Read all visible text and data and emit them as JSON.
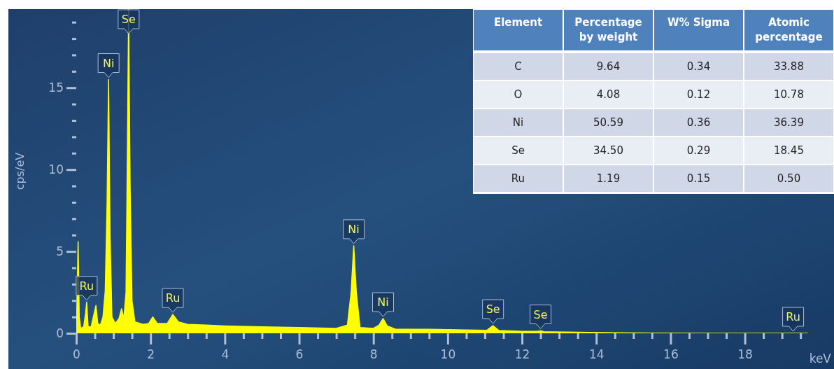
{
  "chart_data": [
    {
      "type": "area",
      "xlabel": "keV",
      "ylabel": "cps/eV",
      "xlim": [
        0,
        20.4
      ],
      "ylim": [
        0,
        19.8
      ],
      "xticks": [
        0,
        {
          "value": 0.5,
          "label": null
        },
        {
          "value": 1,
          "label": null
        },
        {
          "value": 1.5,
          "label": null
        },
        2,
        {
          "value": 2.5,
          "label": null
        },
        {
          "value": 3,
          "label": null
        },
        {
          "value": 3.5,
          "label": null
        },
        4,
        {
          "value": 4.5,
          "label": null
        },
        {
          "value": 5,
          "label": null
        },
        {
          "value": 5.5,
          "label": null
        },
        6,
        {
          "value": 6.5,
          "label": null
        },
        {
          "value": 7,
          "label": null
        },
        {
          "value": 7.5,
          "label": null
        },
        8,
        {
          "value": 8.5,
          "label": null
        },
        {
          "value": 9,
          "label": null
        },
        {
          "value": 9.5,
          "label": null
        },
        10,
        {
          "value": 10.5,
          "label": null
        },
        {
          "value": 11,
          "label": null
        },
        {
          "value": 11.5,
          "label": null
        },
        12,
        {
          "value": 12.5,
          "label": null
        },
        {
          "value": 13,
          "label": null
        },
        {
          "value": 13.5,
          "label": null
        },
        14,
        {
          "value": 14.5,
          "label": null
        },
        {
          "value": 15,
          "label": null
        },
        {
          "value": 15.5,
          "label": null
        },
        16,
        {
          "value": 16.5,
          "label": null
        },
        {
          "value": 17,
          "label": null
        },
        {
          "value": 17.5,
          "label": null
        },
        18,
        {
          "value": 18.5,
          "label": null
        },
        {
          "value": 19,
          "label": null
        },
        {
          "value": 19.5,
          "label": null
        }
      ],
      "yticks": [
        0,
        {
          "value": 1,
          "label": null
        },
        {
          "value": 2,
          "label": null
        },
        {
          "value": 3,
          "label": null
        },
        {
          "value": 4,
          "label": null
        },
        5,
        {
          "value": 6,
          "label": null
        },
        {
          "value": 7,
          "label": null
        },
        {
          "value": 8,
          "label": null
        },
        {
          "value": 9,
          "label": null
        },
        10,
        {
          "value": 11,
          "label": null
        },
        {
          "value": 12,
          "label": null
        },
        {
          "value": 13,
          "label": null
        },
        {
          "value": 14,
          "label": null
        },
        15,
        {
          "value": 16,
          "label": null
        },
        {
          "value": 17,
          "label": null
        },
        {
          "value": 18,
          "label": null
        },
        {
          "value": 19,
          "label": null
        }
      ],
      "series": [
        {
          "color": "#ffff00",
          "x": [
            0,
            0.03,
            0.05,
            0.08,
            0.12,
            0.2,
            0.25,
            0.28,
            0.32,
            0.4,
            0.48,
            0.53,
            0.58,
            0.65,
            0.72,
            0.78,
            0.83,
            0.87,
            0.91,
            0.96,
            1.05,
            1.15,
            1.22,
            1.28,
            1.34,
            1.38,
            1.41,
            1.45,
            1.5,
            1.58,
            1.8,
            1.95,
            2.06,
            2.18,
            2.45,
            2.6,
            2.75,
            3.0,
            3.5,
            4,
            5,
            6,
            7,
            7.3,
            7.4,
            7.47,
            7.54,
            7.64,
            8.0,
            8.15,
            8.26,
            8.37,
            8.6,
            9.5,
            10.5,
            11.05,
            11.22,
            11.38,
            12.0,
            12.4,
            12.5,
            12.6,
            13.5,
            14.5,
            15.5,
            17,
            19.7
          ],
          "values": [
            0,
            3,
            5.6,
            1.0,
            0.3,
            0.4,
            1.2,
            1.9,
            0.4,
            0.4,
            1.2,
            1.7,
            0.6,
            0.5,
            1.0,
            2.6,
            8,
            15.5,
            6,
            1.0,
            0.6,
            0.9,
            1.5,
            0.9,
            2.5,
            12,
            19.8,
            9,
            2,
            0.7,
            0.55,
            0.6,
            1.0,
            0.6,
            0.6,
            1.15,
            0.7,
            0.55,
            0.5,
            0.45,
            0.4,
            0.35,
            0.3,
            0.5,
            2.5,
            5.35,
            2.5,
            0.35,
            0.3,
            0.5,
            0.9,
            0.45,
            0.25,
            0.25,
            0.2,
            0.18,
            0.47,
            0.17,
            0.12,
            0.12,
            0.15,
            0.1,
            0.06,
            0.03,
            0.01,
            0,
            0
          ]
        }
      ],
      "annotations": [
        {
          "text": "Ru",
          "x": 0.28,
          "y": 1.9
        },
        {
          "text": "Ni",
          "x": 0.87,
          "y": 15.5
        },
        {
          "text": "Se",
          "x": 1.41,
          "y": 19.8
        },
        {
          "text": "Ru",
          "x": 2.6,
          "y": 1.15
        },
        {
          "text": "Ni",
          "x": 7.47,
          "y": 5.35
        },
        {
          "text": "Ni",
          "x": 8.26,
          "y": 0.9
        },
        {
          "text": "Se",
          "x": 11.22,
          "y": 0.47
        },
        {
          "text": "Se",
          "x": 12.5,
          "y": 0.15
        },
        {
          "text": "Ru",
          "x": 19.3,
          "y": 0
        }
      ],
      "grid": false,
      "marker": "none",
      "line_style": "solid"
    },
    {
      "type": "other",
      "categories": [
        "Element",
        "Percentage by weight",
        "W% Sigma",
        "Atomic percentage"
      ],
      "cell_labels": [
        [
          "C",
          "9.64",
          "0.34",
          "33.88"
        ],
        [
          "O",
          "4.08",
          "0.12",
          "10.78"
        ],
        [
          "Ni",
          "50.59",
          "0.36",
          "36.39"
        ],
        [
          "Se",
          "34.50",
          "0.29",
          "18.45"
        ],
        [
          "Ru",
          "1.19",
          "0.15",
          "0.50"
        ]
      ]
    }
  ]
}
